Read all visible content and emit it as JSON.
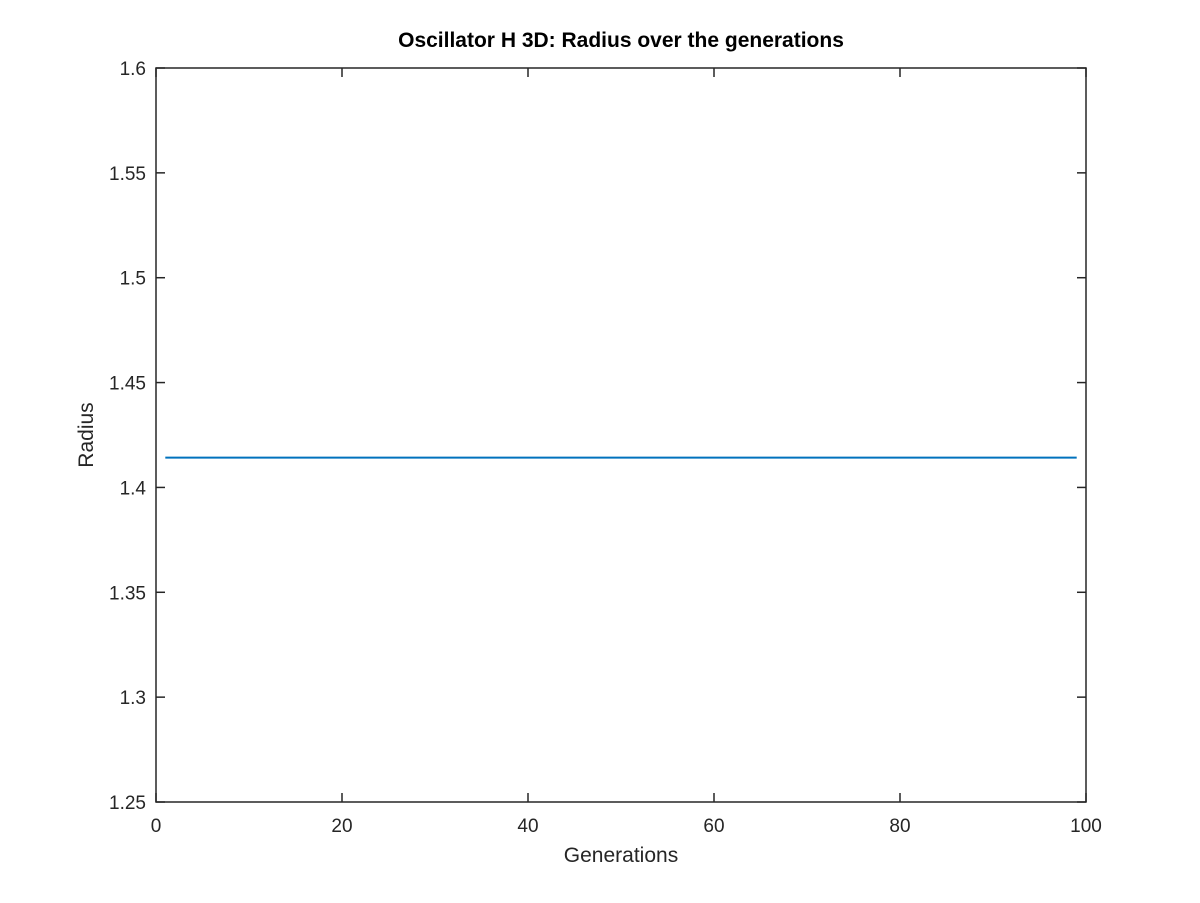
{
  "chart_data": {
    "type": "line",
    "title": "Oscillator  H 3D: Radius over the generations",
    "xlabel": "Generations",
    "ylabel": "Radius",
    "xlim": [
      0,
      100
    ],
    "ylim": [
      1.25,
      1.6
    ],
    "xticks": [
      0,
      20,
      40,
      60,
      80,
      100
    ],
    "xtick_labels": [
      "0",
      "20",
      "40",
      "60",
      "80",
      "100"
    ],
    "yticks": [
      1.25,
      1.3,
      1.35,
      1.4,
      1.45,
      1.5,
      1.55,
      1.6
    ],
    "ytick_labels": [
      "1.25",
      "1.3",
      "1.35",
      "1.4",
      "1.45",
      "1.5",
      "1.55",
      "1.6"
    ],
    "grid": false,
    "box": true,
    "series": [
      {
        "color": "#0072BD",
        "x": [
          1,
          99
        ],
        "y": [
          1.4142,
          1.4142
        ]
      }
    ]
  }
}
